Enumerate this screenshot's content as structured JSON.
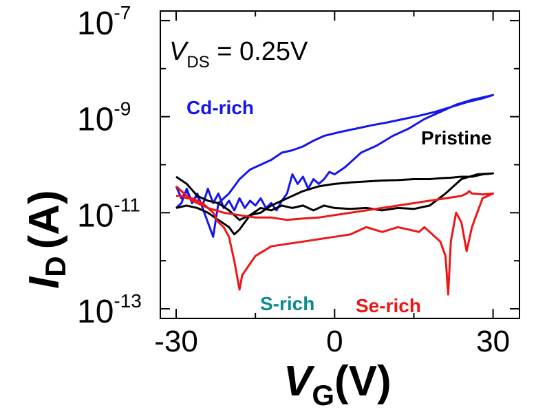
{
  "chart_data": {
    "type": "line",
    "x_axis": {
      "label_main": "V",
      "label_sub": "G",
      "label_unit": "(V)",
      "min": -33,
      "max": 35,
      "ticks": [
        -30,
        0,
        30
      ],
      "tick_labels": [
        "-30",
        "0",
        "30"
      ]
    },
    "y_axis": {
      "label_main": "I",
      "label_sub": "D",
      "label_unit": "(A)",
      "scale": "log",
      "min_exp": -13.2,
      "max_exp": -6.8,
      "major_exps": [
        -13,
        -11,
        -9,
        -7
      ],
      "tick_labels": [
        {
          "exp": -13,
          "base": "10",
          "power": "-13"
        },
        {
          "exp": -11,
          "base": "10",
          "power": "-11"
        },
        {
          "exp": -9,
          "base": "10",
          "power": "-9"
        },
        {
          "exp": -7,
          "base": "10",
          "power": "-7"
        }
      ]
    },
    "annotations": {
      "vds_symbol": "V",
      "vds_sub": "DS",
      "vds_text": " = 0.25V"
    },
    "series": [
      {
        "name": "Cd-rich",
        "color": "#1515ee",
        "x": [
          -30,
          -29,
          -28,
          -27,
          -26,
          -25,
          -24,
          -23,
          -22,
          -21,
          -20,
          -19,
          -18,
          -17,
          -16,
          -15,
          -14,
          -13,
          -12,
          -11,
          -10,
          -9,
          -8,
          -7,
          -6,
          -5,
          -4,
          -3,
          -2,
          -1,
          0,
          2,
          5,
          8,
          11,
          14,
          17,
          20,
          23,
          26,
          28,
          30,
          28,
          25,
          22,
          19,
          16,
          13,
          10,
          7,
          4,
          1,
          -2,
          -4,
          -6,
          -8,
          -10,
          -12,
          -14,
          -16,
          -18,
          -20,
          -22,
          -23,
          -24,
          -25,
          -26,
          -27,
          -28,
          -29,
          -30
        ],
        "y": [
          -10.45,
          -10.7,
          -10.55,
          -10.75,
          -10.65,
          -10.85,
          -10.5,
          -10.8,
          -10.6,
          -10.9,
          -10.75,
          -10.95,
          -10.7,
          -10.9,
          -10.75,
          -10.85,
          -10.7,
          -10.9,
          -10.8,
          -10.95,
          -10.75,
          -10.6,
          -10.2,
          -10.4,
          -10.25,
          -10.5,
          -10.3,
          -10.4,
          -10.3,
          -10.15,
          -10.2,
          -10.05,
          -9.75,
          -9.6,
          -9.4,
          -9.25,
          -9.05,
          -8.9,
          -8.75,
          -8.65,
          -8.6,
          -8.55,
          -8.62,
          -8.7,
          -8.8,
          -8.9,
          -8.98,
          -9.05,
          -9.12,
          -9.18,
          -9.25,
          -9.32,
          -9.4,
          -9.5,
          -9.62,
          -9.7,
          -9.75,
          -9.9,
          -10.0,
          -10.1,
          -10.3,
          -10.6,
          -10.8,
          -11.5,
          -11.2,
          -10.9,
          -10.6,
          -10.8,
          -10.5,
          -10.8,
          -10.9
        ]
      },
      {
        "name": "Pristine",
        "color": "#000000",
        "x": [
          -30,
          -28,
          -26,
          -24,
          -22,
          -20,
          -19,
          -18,
          -16,
          -14,
          -12,
          -10,
          -8,
          -6,
          -4,
          -2,
          0,
          3,
          6,
          9,
          12,
          15,
          18,
          21,
          24,
          27,
          30,
          28,
          26,
          24,
          22,
          20,
          18,
          15,
          12,
          9,
          6,
          3,
          0,
          -3,
          -6,
          -9,
          -12,
          -14,
          -16,
          -18,
          -20,
          -22,
          -24,
          -26,
          -28,
          -30
        ],
        "y": [
          -10.9,
          -10.85,
          -10.9,
          -11.0,
          -11.15,
          -11.3,
          -11.45,
          -11.35,
          -11.05,
          -10.9,
          -10.95,
          -10.85,
          -10.9,
          -10.85,
          -10.95,
          -10.85,
          -10.9,
          -10.92,
          -10.9,
          -10.95,
          -10.9,
          -10.92,
          -10.85,
          -10.6,
          -10.3,
          -10.2,
          -10.18,
          -10.2,
          -10.25,
          -10.25,
          -10.27,
          -10.28,
          -10.3,
          -10.3,
          -10.32,
          -10.33,
          -10.35,
          -10.37,
          -10.4,
          -10.45,
          -10.55,
          -10.7,
          -10.85,
          -11.0,
          -11.05,
          -11.15,
          -10.95,
          -10.8,
          -10.75,
          -10.65,
          -10.4,
          -10.25
        ]
      },
      {
        "name": "Se-rich",
        "color": "#ee1515",
        "x": [
          -30,
          -27,
          -24,
          -21,
          -18,
          -15,
          -12,
          -9,
          -6,
          -3,
          0,
          3,
          6,
          9,
          12,
          15,
          18,
          21,
          24,
          25,
          25.5,
          26,
          28,
          30,
          28,
          26,
          25,
          24,
          23,
          22,
          21.5,
          21,
          20,
          19,
          18,
          17,
          16,
          14,
          12,
          9,
          6,
          3,
          0,
          -3,
          -6,
          -9,
          -12,
          -15,
          -17.5,
          -18,
          -19,
          -20,
          -21,
          -22,
          -23,
          -24,
          -25,
          -26,
          -27,
          -28,
          -29,
          -30
        ],
        "y": [
          -10.45,
          -10.75,
          -10.9,
          -11.0,
          -11.05,
          -11.1,
          -11.1,
          -11.15,
          -11.12,
          -11.1,
          -11.05,
          -11.0,
          -10.95,
          -10.9,
          -10.85,
          -10.8,
          -10.75,
          -10.7,
          -10.65,
          -10.6,
          -10.55,
          -10.6,
          -10.62,
          -10.6,
          -10.7,
          -11.3,
          -11.8,
          -11.2,
          -11.0,
          -11.6,
          -12.7,
          -11.9,
          -11.6,
          -11.5,
          -11.4,
          -11.3,
          -11.4,
          -11.35,
          -11.3,
          -11.4,
          -11.3,
          -11.45,
          -11.5,
          -11.55,
          -11.6,
          -11.65,
          -11.7,
          -11.9,
          -12.3,
          -12.6,
          -12.0,
          -11.5,
          -11.3,
          -11.2,
          -11.0,
          -10.9,
          -10.8,
          -10.75,
          -10.7,
          -10.7,
          -10.65,
          -10.65
        ]
      },
      {
        "name": "S-rich",
        "color": "#0e8a8a",
        "x": [],
        "y": []
      }
    ]
  }
}
